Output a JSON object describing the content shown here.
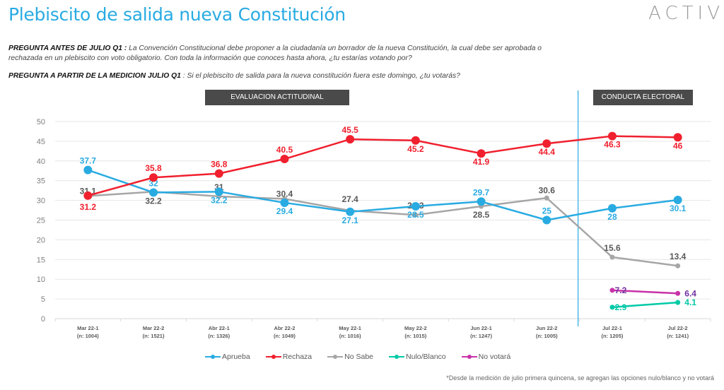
{
  "header": {
    "title": "Plebiscito de salida nueva Constitución",
    "logo": "ACTIV"
  },
  "questions": [
    {
      "label": "PREGUNTA ANTES DE JULIO Q1 :",
      "text": " La Convención Constitucional debe proponer a la ciudadanía un borrador de la nueva Constitución, la cual debe ser aprobada o rechazada en un plebiscito con voto obligatorio. Con toda la información que conoces hasta ahora, ¿tu estarías votando por?"
    },
    {
      "label": "PREGUNTA A PARTIR DE LA MEDICION JULIO Q1",
      "text": " : Si el plebiscito de salida para la nueva constitución fuera este domingo, ¿tu votarás?"
    }
  ],
  "sections": {
    "left": "EVALUACION ACTITUDINAL",
    "right": "CONDUCTA ELECTORAL"
  },
  "footnote": "*Desde la medición de julio primera quincena, se agregan las opciones nulo/blanco y no votará",
  "colors": {
    "Aprueba": "#29abe2",
    "Rechaza": "#f0202e",
    "No Sabe": "#a6a6a6",
    "Nulo/Blanco": "#00c9a7",
    "No votará": "#c832a8",
    "divider": "#29abe2",
    "title": "#29abe2"
  },
  "chart_data": {
    "type": "line",
    "title": "Plebiscito de salida nueva Constitución",
    "xlabel": "",
    "ylabel": "",
    "ylim": [
      0,
      50
    ],
    "yticks": [
      0,
      5,
      10,
      15,
      20,
      25,
      30,
      35,
      40,
      45,
      50
    ],
    "grid": true,
    "legend_position": "bottom",
    "categories": [
      "Mar 22-1",
      "Mar 22-2",
      "Abr 22-1",
      "Abr 22-2",
      "May 22-1",
      "May 22-2",
      "Jun 22-1",
      "Jun 22-2",
      "Jul 22-1",
      "Jul 22-2"
    ],
    "category_n": [
      "(n: 1004)",
      "(n: 1521)",
      "(n: 1326)",
      "(n: 1049)",
      "(n: 1016)",
      "(n: 1015)",
      "(n: 1247)",
      "(n: 1005)",
      "(n: 1205)",
      "(n: 1241)"
    ],
    "divider_after_category": "Jun 22-2",
    "series": [
      {
        "name": "Aprueba",
        "values": [
          37.7,
          32,
          32.2,
          29.4,
          27.1,
          28.5,
          29.7,
          25,
          28,
          30.1
        ]
      },
      {
        "name": "Rechaza",
        "values": [
          31.2,
          35.8,
          36.8,
          40.5,
          45.5,
          45.2,
          41.9,
          44.4,
          46.3,
          46
        ]
      },
      {
        "name": "No Sabe",
        "values": [
          31.1,
          32.2,
          31,
          30.4,
          27.4,
          26.3,
          28.5,
          30.6,
          15.6,
          13.4
        ]
      },
      {
        "name": "Nulo/Blanco",
        "values": [
          null,
          null,
          null,
          null,
          null,
          null,
          null,
          null,
          2.9,
          4.1
        ]
      },
      {
        "name": "No votará",
        "values": [
          null,
          null,
          null,
          null,
          null,
          null,
          null,
          null,
          7.2,
          6.4
        ]
      }
    ]
  }
}
